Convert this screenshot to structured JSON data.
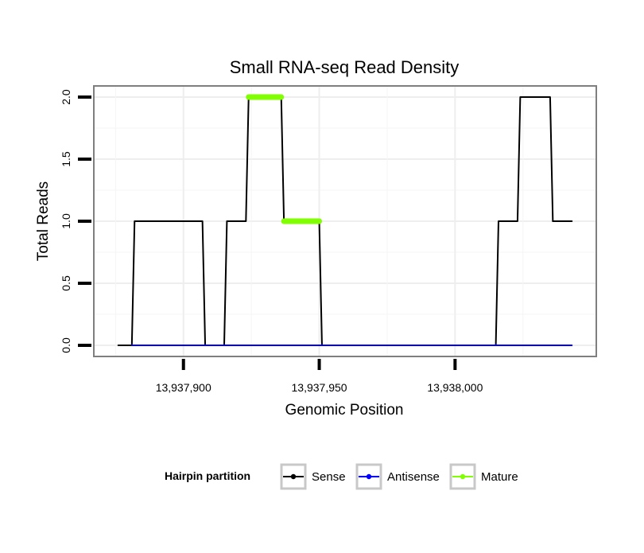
{
  "chart_data": {
    "type": "line",
    "title": "Small RNA-seq Read Density",
    "xlabel": "Genomic Position",
    "ylabel": "Total Reads",
    "xlim": [
      13937867,
      13938052
    ],
    "ylim": [
      -0.09,
      2.09
    ],
    "x_ticks": [
      {
        "value": 13937900,
        "label": "13,937,900"
      },
      {
        "value": 13937950,
        "label": "13,937,950"
      },
      {
        "value": 13938000,
        "label": "13,938,000"
      }
    ],
    "y_ticks": [
      {
        "value": 0,
        "label": "0.0"
      },
      {
        "value": 0.5,
        "label": "0.5"
      },
      {
        "value": 1,
        "label": "1.0"
      },
      {
        "value": 1.5,
        "label": "1.5"
      },
      {
        "value": 2,
        "label": "2.0"
      }
    ],
    "grid": true,
    "legend": {
      "title": "Hairpin partition",
      "position": "bottom",
      "entries": [
        {
          "name": "Sense",
          "color": "#000000"
        },
        {
          "name": "Antisense",
          "color": "#0000ff"
        },
        {
          "name": "Mature",
          "color": "#7fff00"
        }
      ]
    },
    "series": [
      {
        "name": "Sense",
        "color": "#000000",
        "x": [
          13937876,
          13937881,
          13937882,
          13937907,
          13937908,
          13937915,
          13937916,
          13937923,
          13937924,
          13937936,
          13937937,
          13937950,
          13937951,
          13938015,
          13938016,
          13938023,
          13938024,
          13938035,
          13938036
        ],
        "y": [
          0,
          0,
          1,
          1,
          0,
          0,
          1,
          1,
          2,
          2,
          1,
          1,
          0,
          0,
          1,
          1,
          2,
          2,
          1
        ]
      },
      {
        "name": "Antisense",
        "color": "#0000ff",
        "x": [
          13937881,
          13938043
        ],
        "y": [
          0,
          0
        ]
      },
      {
        "name": "Mature",
        "color": "#7fff00",
        "segments": [
          {
            "x": [
              13937924,
              13937936
            ],
            "y": [
              2,
              2
            ]
          },
          {
            "x": [
              13937937,
              13937950
            ],
            "y": [
              1,
              1
            ]
          }
        ]
      }
    ],
    "sense_tail": {
      "x": [
        13938036,
        13938043
      ],
      "y": [
        1,
        1
      ]
    }
  }
}
